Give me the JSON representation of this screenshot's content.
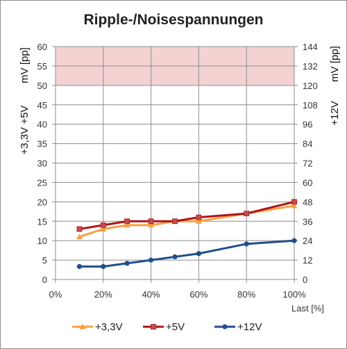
{
  "chart_data": {
    "type": "line",
    "title": "Ripple-/Noisespannungen",
    "xlabel": "Last [%]",
    "ylabel_left": [
      "+3,3V +5V",
      "mV [pp]"
    ],
    "ylabel_right": [
      "+12V",
      "mV [pp]"
    ],
    "x_ticks": [
      "0%",
      "20%",
      "40%",
      "60%",
      "80%",
      "100%"
    ],
    "x_range": [
      0,
      100
    ],
    "y_left_ticks": [
      "0",
      "5",
      "10",
      "15",
      "20",
      "25",
      "30",
      "35",
      "40",
      "45",
      "50",
      "55",
      "60"
    ],
    "y_left_range": [
      0,
      60
    ],
    "y_right_ticks": [
      "0",
      "12",
      "24",
      "36",
      "48",
      "60",
      "72",
      "84",
      "96",
      "108",
      "120",
      "132",
      "144"
    ],
    "y_right_range": [
      0,
      144
    ],
    "limit_band_left": [
      50,
      60
    ],
    "limit_band_color": "#f4d2d2",
    "grid": true,
    "legend_position": "bottom",
    "series": [
      {
        "name": "+3,3V",
        "axis": "left",
        "color": "#f6a243",
        "marker": "triangle",
        "x": [
          10,
          20,
          30,
          40,
          50,
          60,
          80,
          100
        ],
        "y": [
          11,
          13,
          14,
          14,
          15,
          15,
          17,
          19
        ]
      },
      {
        "name": "+5V",
        "axis": "left",
        "color": "#b01318",
        "marker": "square",
        "x": [
          10,
          20,
          30,
          40,
          50,
          60,
          80,
          100
        ],
        "y": [
          13,
          14,
          15,
          15,
          15,
          16,
          17,
          20
        ]
      },
      {
        "name": "+12V",
        "axis": "right",
        "color": "#1f4e8c",
        "marker": "circle",
        "x": [
          10,
          20,
          30,
          40,
          50,
          60,
          80,
          100
        ],
        "y": [
          8,
          8,
          10,
          12,
          14,
          16,
          22,
          24
        ]
      }
    ]
  }
}
